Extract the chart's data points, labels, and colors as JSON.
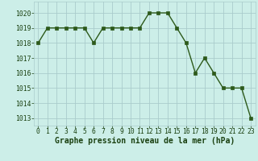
{
  "x": [
    0,
    1,
    2,
    3,
    4,
    5,
    6,
    7,
    8,
    9,
    10,
    11,
    12,
    13,
    14,
    15,
    16,
    17,
    18,
    19,
    20,
    21,
    22,
    23
  ],
  "y": [
    1018,
    1019,
    1019,
    1019,
    1019,
    1019,
    1018,
    1019,
    1019,
    1019,
    1019,
    1019,
    1020,
    1020,
    1020,
    1019,
    1018,
    1016,
    1017,
    1016,
    1015,
    1015,
    1015,
    1013
  ],
  "line_color": "#2d5a1b",
  "marker": "s",
  "marker_size": 2.5,
  "bg_color": "#cceee8",
  "grid_color": "#aacccc",
  "xlabel": "Graphe pression niveau de la mer (hPa)",
  "xlabel_color": "#1a4010",
  "tick_label_color": "#1a4010",
  "ylim": [
    1012.5,
    1020.75
  ],
  "xlim": [
    -0.5,
    23.5
  ],
  "yticks": [
    1013,
    1014,
    1015,
    1016,
    1017,
    1018,
    1019,
    1020
  ],
  "xticks": [
    0,
    1,
    2,
    3,
    4,
    5,
    6,
    7,
    8,
    9,
    10,
    11,
    12,
    13,
    14,
    15,
    16,
    17,
    18,
    19,
    20,
    21,
    22,
    23
  ],
  "tick_fontsize": 5.8,
  "xlabel_fontsize": 7.0,
  "linewidth": 1.0
}
